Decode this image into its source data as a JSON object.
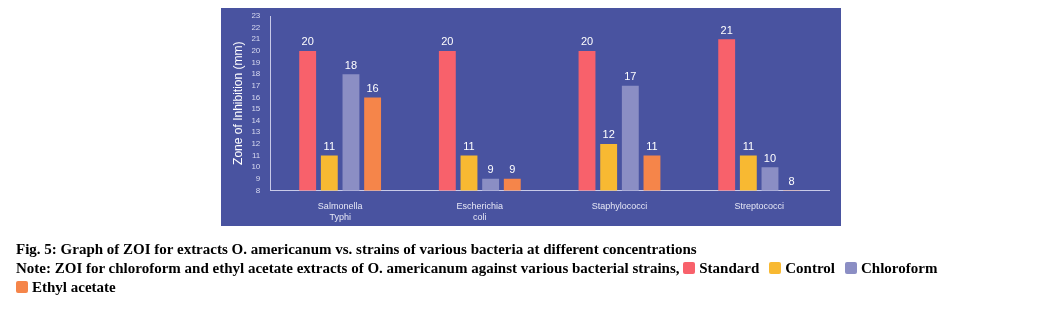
{
  "chart_data": {
    "type": "bar",
    "title": "Fig. 5: Graph of ZOI for extracts O. americanum vs. strains of various bacteria at different concentrations",
    "ylabel": "Zone of Inhibition (mm)",
    "annotations": [
      "Note: ZOI for chloroform and ethyl acetate extracts of O. americanum against various bacterial strains,"
    ],
    "categories": [
      "Salmonella Typhi",
      "Escherichia coli",
      "Staphylococci",
      "Streptococci"
    ],
    "series": [
      {
        "name": "Standard",
        "color": "#f8616b",
        "values": [
          20,
          20,
          20,
          21
        ]
      },
      {
        "name": "Control",
        "color": "#f8b932",
        "values": [
          11,
          11,
          12,
          11
        ]
      },
      {
        "name": "Chloroform",
        "color": "#8b8ec4",
        "values": [
          18,
          9,
          17,
          10
        ]
      },
      {
        "name": "Ethyl acetate",
        "color": "#f5854a",
        "values": [
          16,
          9,
          11,
          8
        ]
      }
    ],
    "ylim": [
      8,
      23
    ],
    "yticks": [
      8,
      9,
      10,
      11,
      12,
      13,
      14,
      15,
      16,
      17,
      18,
      19,
      20,
      21,
      22,
      23
    ],
    "data_labels": true,
    "grid": false,
    "legend": "bottom"
  }
}
